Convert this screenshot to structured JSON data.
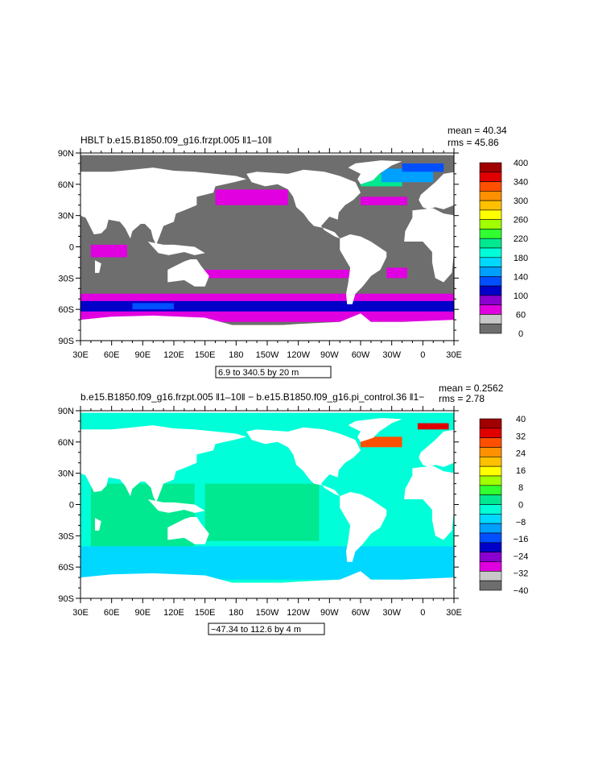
{
  "colors": {
    "land": "#ffffff",
    "frame": "#000000",
    "palette": [
      "#6e6e6e",
      "#c8c8c8",
      "#e000e0",
      "#8a00d0",
      "#0000c8",
      "#0050ff",
      "#00a0ff",
      "#00d8ff",
      "#00ffd8",
      "#00e890",
      "#30ff30",
      "#a0ff00",
      "#ffff00",
      "#ffc000",
      "#ff9000",
      "#ff5000",
      "#e00000",
      "#a00000"
    ]
  },
  "chart_data": [
    {
      "type": "heatmap",
      "title": "HBLT b.e15.B1850.f09_g16.frzpt.005 ‖1–10‖",
      "stats": {
        "mean": "mean = 40.34",
        "rms": "rms = 45.86"
      },
      "subtitle": "6.9 to 340.5 by 20 m",
      "x_tick_labels": [
        "30E",
        "60E",
        "90E",
        "120E",
        "150E",
        "180",
        "150W",
        "120W",
        "90W",
        "60W",
        "30W",
        "0",
        "30E"
      ],
      "y_tick_labels": [
        "90N",
        "60N",
        "30N",
        "0",
        "30S",
        "60S",
        "90S"
      ],
      "xlim": [
        30,
        390
      ],
      "ylim": [
        -90,
        90
      ],
      "colorbar": {
        "labels": [
          "400",
          "340",
          "300",
          "260",
          "220",
          "180",
          "140",
          "100",
          "60",
          "0"
        ],
        "range": [
          0,
          400
        ]
      },
      "regions": [
        {
          "lon": [
            30,
            390
          ],
          "lat": [
            -75,
            88
          ],
          "value": 20
        },
        {
          "lon": [
            30,
            390
          ],
          "lat": [
            -72,
            -45
          ],
          "value": 55
        },
        {
          "lon": [
            30,
            390
          ],
          "lat": [
            -62,
            -52
          ],
          "value": 95
        },
        {
          "lon": [
            80,
            120
          ],
          "lat": [
            -60,
            -54
          ],
          "value": 130
        },
        {
          "lon": [
            140,
            300
          ],
          "lat": [
            -30,
            -22
          ],
          "value": 55
        },
        {
          "lon": [
            160,
            230
          ],
          "lat": [
            40,
            55
          ],
          "value": 55
        },
        {
          "lon": [
            300,
            340
          ],
          "lat": [
            58,
            70
          ],
          "value": 220
        },
        {
          "lon": [
            320,
            370
          ],
          "lat": [
            62,
            75
          ],
          "value": 150
        },
        {
          "lon": [
            340,
            380
          ],
          "lat": [
            72,
            80
          ],
          "value": 120
        },
        {
          "lon": [
            300,
            345
          ],
          "lat": [
            40,
            48
          ],
          "value": 55
        },
        {
          "lon": [
            40,
            75
          ],
          "lat": [
            -10,
            2
          ],
          "value": 55
        },
        {
          "lon": [
            325,
            345
          ],
          "lat": [
            -30,
            -20
          ],
          "value": 55
        }
      ]
    },
    {
      "type": "heatmap",
      "title": "b.e15.B1850.f09_g16.frzpt.005 ‖1–10‖ − b.e15.B1850.f09_g16.pi_control.36 ‖1−",
      "stats": {
        "mean": "mean = 0.2562",
        "rms": "rms = 2.78"
      },
      "subtitle": "−47.34 to 112.6 by 4 m",
      "x_tick_labels": [
        "30E",
        "60E",
        "90E",
        "120E",
        "150E",
        "180",
        "150W",
        "120W",
        "90W",
        "60W",
        "30W",
        "0",
        "30E"
      ],
      "y_tick_labels": [
        "90N",
        "60N",
        "30N",
        "0",
        "30S",
        "60S",
        "90S"
      ],
      "xlim": [
        30,
        390
      ],
      "ylim": [
        -90,
        90
      ],
      "colorbar": {
        "labels": [
          "40",
          "32",
          "24",
          "16",
          "8",
          "0",
          "−8",
          "−16",
          "−24",
          "−32",
          "−40"
        ],
        "range": [
          -40,
          40
        ]
      },
      "regions": [
        {
          "lon": [
            30,
            390
          ],
          "lat": [
            -75,
            88
          ],
          "value": -2
        },
        {
          "lon": [
            30,
            390
          ],
          "lat": [
            -72,
            -40
          ],
          "value": -6
        },
        {
          "lon": [
            150,
            260
          ],
          "lat": [
            -35,
            20
          ],
          "value": 2
        },
        {
          "lon": [
            40,
            140
          ],
          "lat": [
            -40,
            20
          ],
          "value": 2
        },
        {
          "lon": [
            300,
            340
          ],
          "lat": [
            55,
            65
          ],
          "value": 30
        },
        {
          "lon": [
            355,
            385
          ],
          "lat": [
            72,
            78
          ],
          "value": 34
        }
      ]
    }
  ]
}
